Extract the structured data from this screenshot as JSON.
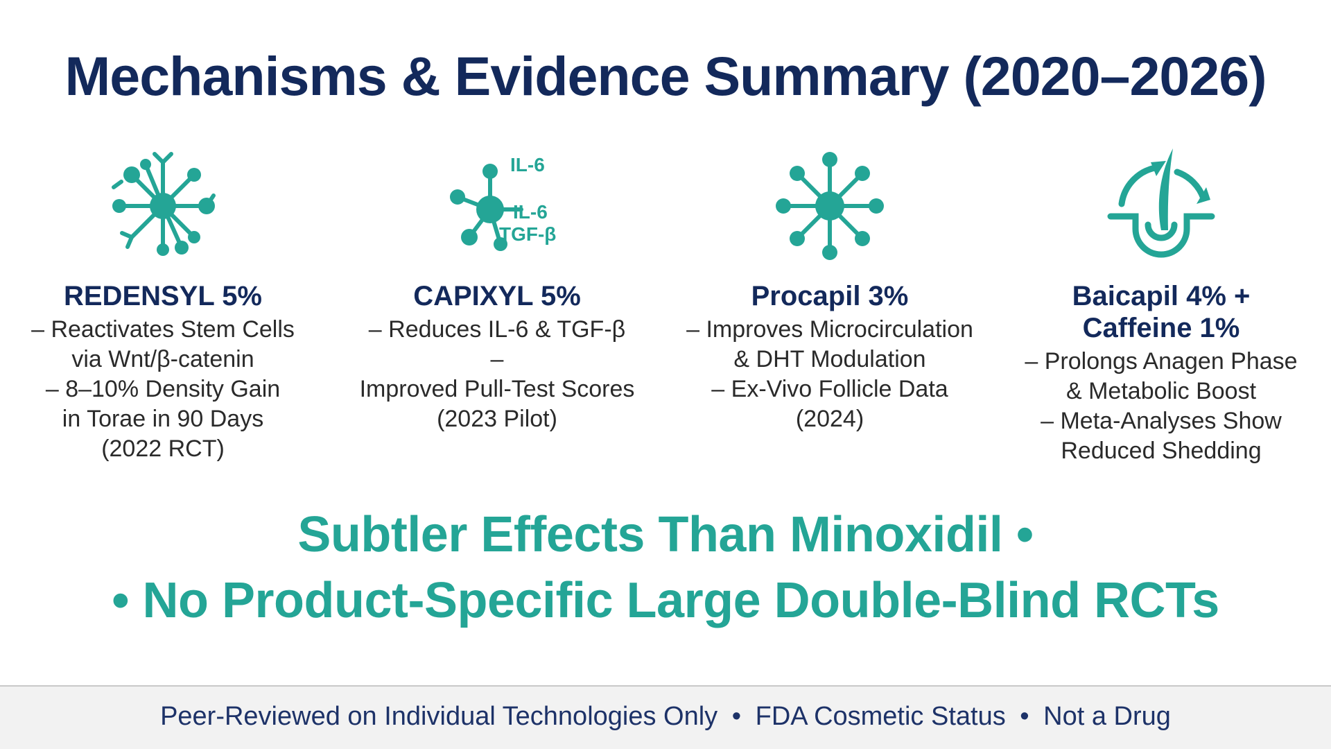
{
  "title": "Mechanisms & Evidence Summary (2020–2026)",
  "colors": {
    "navy": "#13295b",
    "teal": "#24a596",
    "text": "#2a2a2a",
    "footer_bg": "#f2f2f2"
  },
  "cards": [
    {
      "icon": "cell-network-icon",
      "name": [
        "REDENSYL 5%"
      ],
      "bullets": [
        "– Reactivates Stem Cells",
        "via Wnt/β-catenin",
        "– 8–10% Density Gain",
        "in Torae in 90 Days",
        "(2022 RCT)"
      ]
    },
    {
      "icon": "molecule-icon",
      "icon_labels": [
        "IL-6",
        "IL-6",
        "TGF-β"
      ],
      "name": [
        "CAPIXYL 5%"
      ],
      "bullets": [
        "– Reduces IL-6 & TGF-β",
        "–",
        "Improved Pull-Test Scores",
        "(2023 Pilot)"
      ]
    },
    {
      "icon": "radial-cell-icon",
      "name": [
        "Procapil 3%"
      ],
      "bullets": [
        "– Improves Microcirculation",
        "& DHT Modulation",
        "– Ex-Vivo Follicle Data",
        "(2024)"
      ]
    },
    {
      "icon": "hair-follicle-icon",
      "name": [
        "Baicapil 4% +",
        "Caffeine 1%"
      ],
      "bullets": [
        "– Prolongs Anagen Phase",
        "& Metabolic Boost",
        "– Meta-Analyses Show",
        "Reduced Shedding"
      ]
    }
  ],
  "tagline": {
    "line1": "Subtler Effects Than Minoxidil •",
    "line2": "• No Product-Specific Large Double-Blind RCTs"
  },
  "footer": {
    "items": [
      "Peer-Reviewed on Individual Technologies Only",
      "FDA Cosmetic Status",
      "Not a Drug"
    ],
    "separator": "•"
  }
}
